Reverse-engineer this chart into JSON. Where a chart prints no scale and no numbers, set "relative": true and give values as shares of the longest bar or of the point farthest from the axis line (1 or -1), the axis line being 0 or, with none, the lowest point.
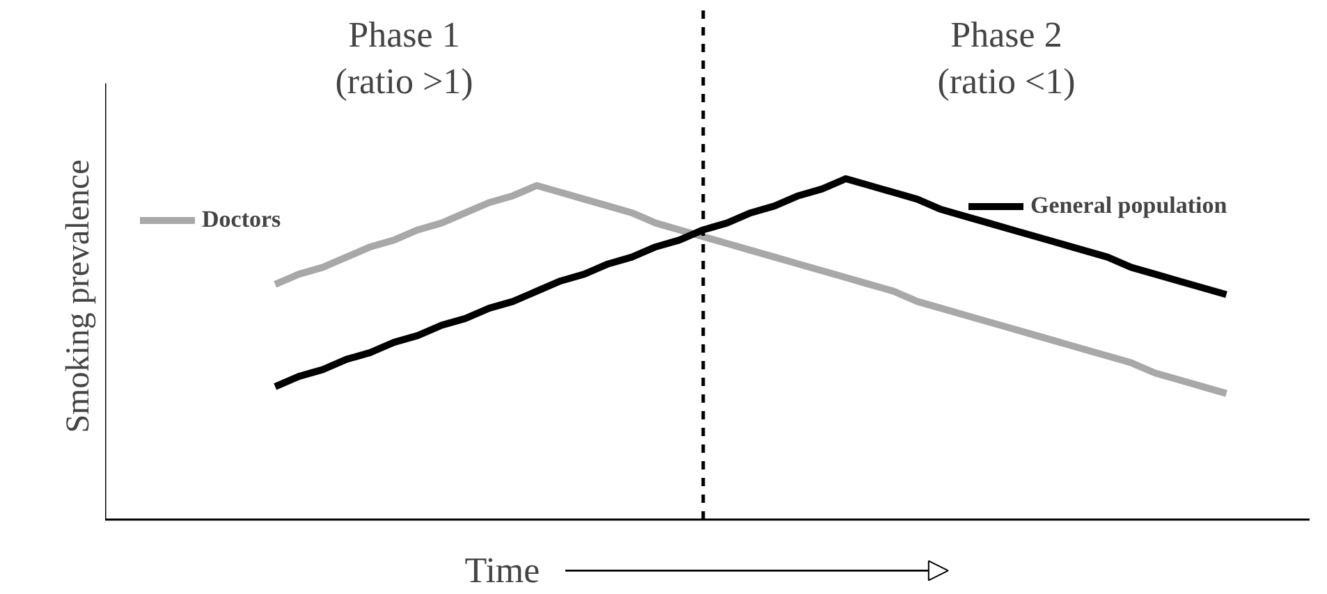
{
  "chart_data": {
    "type": "line",
    "relative": true,
    "xlabel": "Time",
    "ylabel": "Smoking prevalence",
    "categories": [
      null,
      null,
      null,
      null,
      null,
      null,
      null,
      null,
      null,
      null,
      null,
      null,
      null,
      null,
      null,
      null,
      null,
      null,
      null,
      null,
      null,
      null,
      null,
      null,
      null,
      null,
      null,
      null,
      null,
      null,
      null,
      null,
      null,
      null,
      null,
      null,
      null,
      null,
      null,
      null,
      null
    ],
    "tick_labels": false,
    "legend": "top",
    "grid": false,
    "marker": "none",
    "line_style": "solid",
    "annotations": [
      "Phase 1\n(ratio >1)",
      "Phase 2\n(ratio <1)"
    ],
    "series": [
      {
        "name": "Doctors",
        "color": "#a8a8a8",
        "values": [
          0.69,
          0.72,
          0.74,
          0.77,
          0.8,
          0.82,
          0.85,
          0.87,
          0.9,
          0.93,
          0.95,
          0.98,
          0.96,
          0.94,
          0.92,
          0.9,
          0.87,
          0.85,
          0.83,
          0.81,
          0.79,
          0.77,
          0.75,
          0.73,
          0.71,
          0.69,
          0.67,
          0.64,
          0.62,
          0.6,
          0.58,
          0.56,
          0.54,
          0.52,
          0.5,
          0.48,
          0.46,
          0.43,
          0.41,
          0.39,
          0.37
        ]
      },
      {
        "name": "General population",
        "color": "#000000",
        "values": [
          0.39,
          0.42,
          0.44,
          0.47,
          0.49,
          0.52,
          0.54,
          0.57,
          0.59,
          0.62,
          0.64,
          0.67,
          0.7,
          0.72,
          0.75,
          0.77,
          0.8,
          0.82,
          0.85,
          0.87,
          0.9,
          0.92,
          0.95,
          0.97,
          1.0,
          0.98,
          0.96,
          0.94,
          0.91,
          0.89,
          0.87,
          0.85,
          0.83,
          0.81,
          0.79,
          0.77,
          0.74,
          0.72,
          0.7,
          0.68,
          0.66
        ]
      }
    ]
  }
}
